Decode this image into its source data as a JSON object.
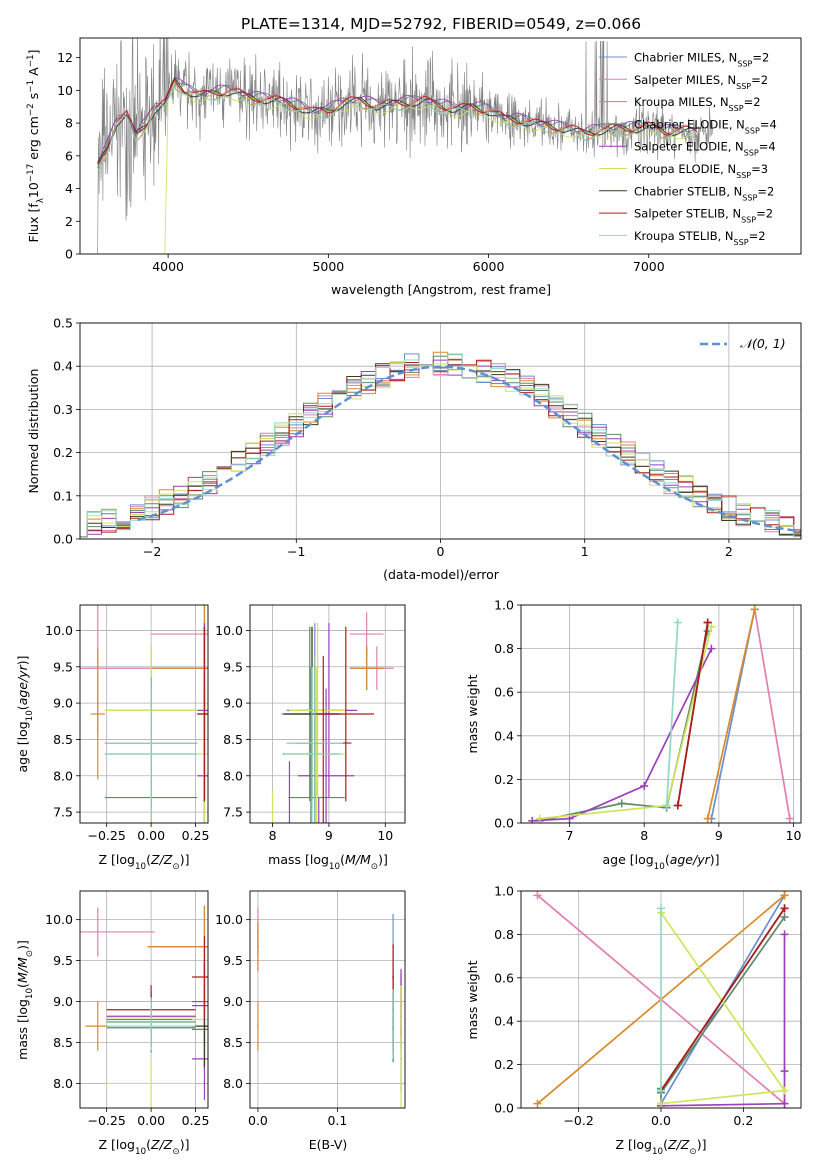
{
  "figure_title": "PLATE=1314, MJD=52792, FIBERID=0549, z=0.066",
  "series_names": [
    "Chabrier MILES, N_SSP=2",
    "Salpeter MILES, N_SSP=2",
    "Kroupa MILES, N_SSP=2",
    "Chabrier ELODIE, N_SSP=4",
    "Salpeter ELODIE, N_SSP=4",
    "Kroupa ELODIE, N_SSP=3",
    "Chabrier STELIB, N_SSP=2",
    "Salpeter STELIB, N_SSP=2",
    "Kroupa STELIB, N_SSP=2"
  ],
  "colors": [
    "#6a8fd0",
    "#e07fb0",
    "#d98a2a",
    "#5e8a68",
    "#9b3fbb",
    "#cfe45a",
    "#3b3b1f",
    "#b01c1c",
    "#93d8c6"
  ],
  "data_color": "#808080",
  "chart_data": [
    {
      "id": "spectrum",
      "type": "line",
      "title": "PLATE=1314, MJD=52792, FIBERID=0549, z=0.066",
      "xlabel": "wavelength [Angstrom, rest frame]",
      "ylabel": "Flux [f",
      "xlim": [
        3450,
        7950
      ],
      "ylim": [
        0,
        13.2
      ],
      "xticks": [
        4000,
        5000,
        6000,
        7000
      ],
      "yticks": [
        0,
        2,
        4,
        6,
        8,
        10,
        12
      ],
      "grid": false,
      "legend": "upper-right",
      "legend_entries": [
        {
          "name": "Chabrier MILES, N",
          "sub": "SSP",
          "n": "=2"
        },
        {
          "name": "Salpeter MILES, N",
          "sub": "SSP",
          "n": "=2"
        },
        {
          "name": "Kroupa MILES, N",
          "sub": "SSP",
          "n": "=2"
        },
        {
          "name": "Chabrier ELODIE, N",
          "sub": "SSP",
          "n": "=4"
        },
        {
          "name": "Salpeter ELODIE, N",
          "sub": "SSP",
          "n": "=4"
        },
        {
          "name": "Kroupa ELODIE, N",
          "sub": "SSP",
          "n": "=3"
        },
        {
          "name": "Chabrier STELIB, N",
          "sub": "SSP",
          "n": "=2"
        },
        {
          "name": "Salpeter STELIB, N",
          "sub": "SSP",
          "n": "=2"
        },
        {
          "name": "Kroupa STELIB, N",
          "sub": "SSP",
          "n": "=2"
        }
      ],
      "model_x": [
        3560,
        3620,
        3680,
        3740,
        3800,
        3860,
        3920,
        3980,
        4040,
        4100,
        4200,
        4300,
        4400,
        4500,
        4600,
        4700,
        4800,
        4900,
        5000,
        5100,
        5200,
        5300,
        5400,
        5500,
        5600,
        5700,
        5800,
        5900,
        6000,
        6100,
        6200,
        6300,
        6400,
        6500,
        6600,
        6700,
        6800,
        6900,
        7000,
        7100,
        7200,
        7300
      ],
      "model_y": [
        5.3,
        6.5,
        8.0,
        8.4,
        7.2,
        7.9,
        8.8,
        9.1,
        10.5,
        10.0,
        9.6,
        9.8,
        9.9,
        9.5,
        9.4,
        9.3,
        9.0,
        8.6,
        8.7,
        9.2,
        9.3,
        9.0,
        9.1,
        9.2,
        9.3,
        9.0,
        8.8,
        8.9,
        8.7,
        8.2,
        8.1,
        7.9,
        7.7,
        7.6,
        7.3,
        7.5,
        7.6,
        7.6,
        7.7,
        7.4,
        7.5,
        7.4
      ]
    },
    {
      "id": "residuals",
      "type": "line",
      "xlabel": "(data-model)/error",
      "ylabel": "Normed distribution",
      "xlim": [
        -2.5,
        2.5
      ],
      "ylim": [
        0,
        0.5
      ],
      "xticks": [
        -2,
        -1,
        0,
        1,
        2
      ],
      "yticks": [
        0,
        0.1,
        0.2,
        0.3,
        0.4,
        0.5
      ],
      "grid": true,
      "legend": "upper-right",
      "legend_label": "𝒩(0, 1)",
      "bin_width": 0.1
    },
    {
      "id": "age-z",
      "type": "scatter",
      "xlabel": "Z [log",
      "ylabel": "age  [log",
      "xlim": [
        -0.4,
        0.32
      ],
      "ylim": [
        7.35,
        10.35
      ],
      "xticks": [
        -0.25,
        0,
        0.25
      ],
      "yticks": [
        7.5,
        8.0,
        8.5,
        9.0,
        9.5,
        10.0
      ],
      "xtick_labels": [
        "−0.25",
        "0.00",
        "0.25"
      ],
      "grid": true
    },
    {
      "id": "age-mass",
      "type": "scatter",
      "xlabel": "mass [log",
      "xlim": [
        7.6,
        10.35
      ],
      "ylim": [
        7.35,
        10.35
      ],
      "xticks": [
        8,
        9,
        10
      ],
      "yticks": [
        7.5,
        8.0,
        8.5,
        9.0,
        9.5,
        10.0
      ],
      "grid": true
    },
    {
      "id": "weight-age",
      "type": "line",
      "xlabel": "age  [log",
      "ylabel": "mass weight",
      "xlim": [
        6.35,
        10.1
      ],
      "ylim": [
        0,
        1
      ],
      "xticks": [
        7,
        8,
        9,
        10
      ],
      "yticks": [
        0,
        0.2,
        0.4,
        0.6,
        0.8,
        1.0
      ],
      "grid": true
    },
    {
      "id": "mass-z",
      "type": "scatter",
      "xlabel": "Z [log",
      "ylabel": "mass [log",
      "xlim": [
        -0.4,
        0.32
      ],
      "ylim": [
        7.7,
        10.35
      ],
      "xticks": [
        -0.25,
        0,
        0.25
      ],
      "yticks": [
        8.0,
        8.5,
        9.0,
        9.5,
        10.0
      ],
      "xtick_labels": [
        "−0.25",
        "0.00",
        "0.25"
      ],
      "grid": true
    },
    {
      "id": "mass-ebv",
      "type": "scatter",
      "xlabel": "E(B-V)",
      "xlim": [
        -0.01,
        0.185
      ],
      "ylim": [
        7.7,
        10.35
      ],
      "xticks": [
        0,
        0.1
      ],
      "yticks": [
        8.0,
        8.5,
        9.0,
        9.5,
        10.0
      ],
      "xtick_labels": [
        "0.0",
        "0.1"
      ],
      "grid": true
    },
    {
      "id": "weight-z",
      "type": "line",
      "xlabel": "Z [log",
      "ylabel": "mass weight",
      "xlim": [
        -0.34,
        0.34
      ],
      "ylim": [
        0,
        1
      ],
      "xticks": [
        -0.2,
        0,
        0.2
      ],
      "yticks": [
        0,
        0.2,
        0.4,
        0.6,
        0.8,
        1.0
      ],
      "xtick_labels": [
        "−0.2",
        "0.0",
        "0.2"
      ],
      "grid": true
    }
  ],
  "ssp_fits": [
    {
      "label": "Chabrier MILES",
      "color": 0,
      "ages": [
        8.9,
        9.48
      ],
      "weights": [
        0.02,
        0.98
      ],
      "Z": [
        0.0,
        0.3
      ],
      "masses": [
        8.75,
        9.67
      ],
      "ebv": 0.17
    },
    {
      "label": "Salpeter MILES",
      "color": 1,
      "ages": [
        9.48,
        9.95
      ],
      "weights": [
        0.98,
        0.02
      ],
      "Z": [
        -0.3,
        0.3
      ],
      "masses": [
        9.85,
        9.67
      ],
      "ebv": 0.0
    },
    {
      "label": "Kroupa MILES",
      "color": 2,
      "ages": [
        8.85,
        9.48
      ],
      "weights": [
        0.02,
        0.98
      ],
      "Z": [
        -0.3,
        0.3
      ],
      "masses": [
        8.7,
        9.67
      ],
      "ebv": 0.0
    },
    {
      "label": "Chabrier ELODIE",
      "color": 3,
      "ages": [
        6.6,
        7.7,
        8.3,
        8.85
      ],
      "weights": [
        0.01,
        0.09,
        0.07,
        0.88
      ],
      "Z": [
        0.0,
        0.0,
        0.0,
        0.3
      ],
      "masses": [
        8.75,
        8.78,
        8.68,
        8.66
      ],
      "ebv": 0.17
    },
    {
      "label": "Salpeter ELODIE",
      "color": 4,
      "ages": [
        6.5,
        7.0,
        8.0,
        8.9
      ],
      "weights": [
        0.01,
        0.02,
        0.17,
        0.8
      ],
      "Z": [
        0.0,
        0.3,
        0.3,
        0.3
      ],
      "masses": [
        8.82,
        8.3,
        8.95,
        9.0
      ],
      "ebv": 0.18
    },
    {
      "label": "Kroupa ELODIE",
      "color": 5,
      "ages": [
        6.6,
        8.3,
        8.9
      ],
      "weights": [
        0.02,
        0.08,
        0.9
      ],
      "Z": [
        0.0,
        0.3,
        0.0
      ],
      "masses": [
        8.0,
        8.78,
        8.8
      ],
      "ebv": 0.18
    },
    {
      "label": "Chabrier STELIB",
      "color": 6,
      "ages": [
        8.45,
        8.85
      ],
      "weights": [
        0.08,
        0.92
      ],
      "Z": [
        0.0,
        0.3
      ],
      "masses": [
        8.75,
        8.7
      ],
      "ebv": 0.17
    },
    {
      "label": "Salpeter STELIB",
      "color": 7,
      "ages": [
        8.45,
        8.85
      ],
      "weights": [
        0.08,
        0.92
      ],
      "Z": [
        0.0,
        0.3
      ],
      "masses": [
        8.9,
        9.3
      ],
      "ebv": 0.17
    },
    {
      "label": "Kroupa STELIB",
      "color": 8,
      "ages": [
        8.3,
        8.45
      ],
      "weights": [
        0.08,
        0.92
      ],
      "Z": [
        0.0,
        0.0
      ],
      "masses": [
        8.7,
        8.75
      ],
      "ebv": 0.17
    }
  ]
}
